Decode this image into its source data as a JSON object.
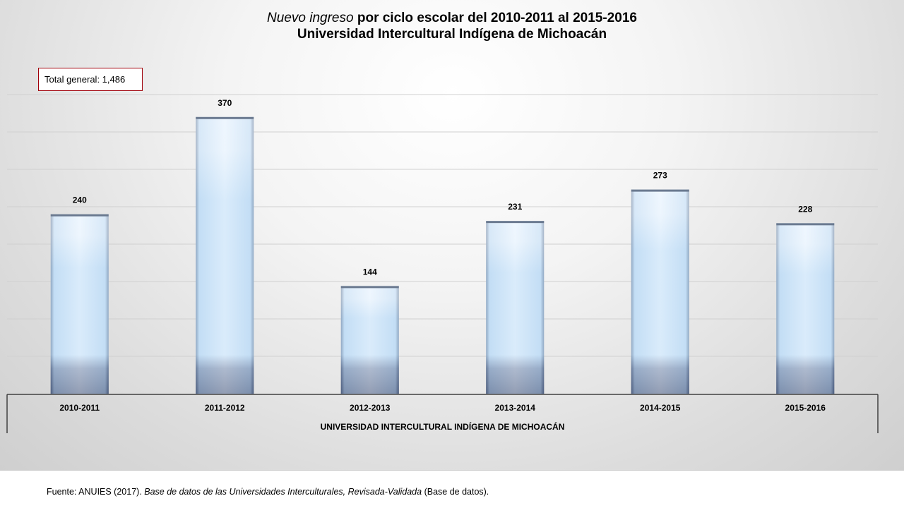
{
  "title": {
    "italic_part": "Nuevo ingreso",
    "rest": " por ciclo escolar del 2010-2011 al 2015-2016",
    "line2": "Universidad Intercultural Indígena de Michoacán"
  },
  "total_box": "Total general: 1,486",
  "source": {
    "prefix": "Fuente:  ANUIES  (2017). ",
    "italic": "Base de datos de las Universidades  Interculturales, Revisada-Validada",
    "suffix": "  (Base de datos)."
  },
  "chart_data": {
    "type": "bar",
    "title": "Nuevo ingreso por ciclo escolar del 2010-2011 al 2015-2016 Universidad Intercultural Indígena de Michoacán",
    "categories": [
      "2010-2011",
      "2011-2012",
      "2012-2013",
      "2013-2014",
      "2014-2015",
      "2015-2016"
    ],
    "values": [
      240,
      370,
      144,
      231,
      273,
      228
    ],
    "group_label": "UNIVERSIDAD INTERCULTURAL INDÍGENA DE MICHOACÁN",
    "xlabel": "",
    "ylabel": "",
    "ylim": [
      0,
      400
    ],
    "grid": true,
    "legend": "none",
    "colors": {
      "bar_light": "#e8f3fd",
      "bar_mid": "#bcdcf7",
      "bar_dark": "#1f2f59",
      "gridline": "#d0d0d0"
    }
  }
}
